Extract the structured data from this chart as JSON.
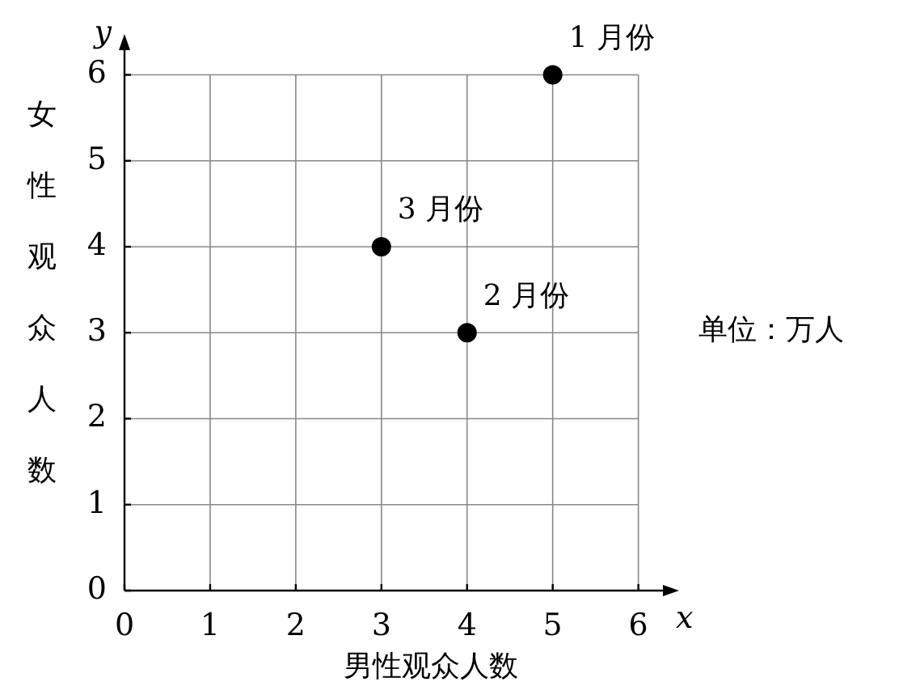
{
  "chart_data": {
    "type": "scatter",
    "xlabel": "x",
    "ylabel": "y",
    "x": [
      5,
      4,
      3
    ],
    "values": [
      6,
      3,
      4
    ],
    "color": "#000000",
    "marker": "circle",
    "xlim": [
      0,
      6.4
    ],
    "ylim": [
      0,
      6.4
    ],
    "xticks": [
      0,
      1,
      2,
      3,
      4,
      5,
      6
    ],
    "yticks": [
      0,
      1,
      2,
      3,
      4,
      5,
      6
    ],
    "grid": true,
    "legend": false,
    "annotations": [
      {
        "text": "1 月份",
        "x": 5,
        "y": 6
      },
      {
        "text": "2 月份",
        "x": 4,
        "y": 3
      },
      {
        "text": "3 月份",
        "x": 3,
        "y": 4
      },
      "男性观众人数",
      "女性观众人数",
      "单位：万人"
    ]
  }
}
